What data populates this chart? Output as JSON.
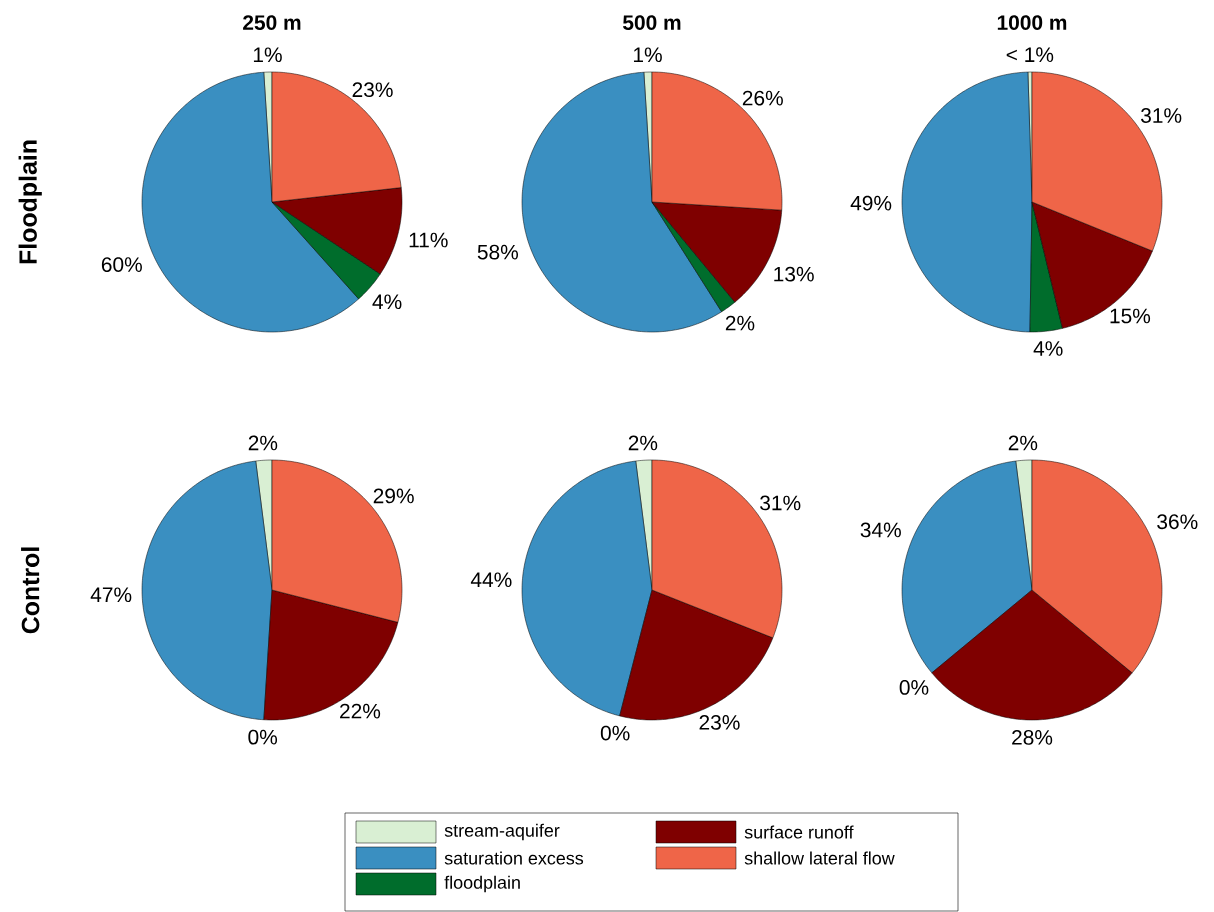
{
  "chart_data": [
    {
      "type": "pie",
      "title": "250 m",
      "ylabel": "Floodplain",
      "categories": [
        null,
        null,
        null,
        null,
        null
      ],
      "values": [
        1,
        60,
        4,
        11,
        23
      ],
      "colors": [
        "#d9efd3",
        "#3a8fc1",
        "#006d2c",
        "#7f0000",
        "#ef6548"
      ],
      "value_labels": [
        "1%",
        "60%",
        "4%",
        "11%",
        "23%"
      ]
    },
    {
      "type": "pie",
      "title": "500 m",
      "categories": [
        null,
        null,
        null,
        null,
        null
      ],
      "values": [
        1,
        58,
        2,
        13,
        26
      ],
      "colors": [
        "#d9efd3",
        "#3a8fc1",
        "#006d2c",
        "#7f0000",
        "#ef6548"
      ],
      "value_labels": [
        "1%",
        "58%",
        "2%",
        "13%",
        "26%"
      ]
    },
    {
      "type": "pie",
      "title": "1000 m",
      "categories": [
        null,
        null,
        null,
        null,
        null
      ],
      "values": [
        0.5,
        49,
        4,
        15,
        31
      ],
      "colors": [
        "#d9efd3",
        "#3a8fc1",
        "#006d2c",
        "#7f0000",
        "#ef6548"
      ],
      "value_labels": [
        "< 1%",
        "49%",
        "4%",
        "15%",
        "31%"
      ]
    },
    {
      "type": "pie",
      "ylabel": "Control",
      "categories": [
        null,
        null,
        null,
        null,
        null
      ],
      "values": [
        2,
        47,
        0,
        22,
        29
      ],
      "colors": [
        "#d9efd3",
        "#3a8fc1",
        "#006d2c",
        "#7f0000",
        "#ef6548"
      ],
      "value_labels": [
        "2%",
        "47%",
        "0%",
        "22%",
        "29%"
      ]
    },
    {
      "type": "pie",
      "legend": "bottom",
      "categories": [
        "stream-aquifer",
        "saturation excess",
        "floodplain",
        "surface runoff",
        "shallow lateral flow"
      ],
      "values": [
        2,
        44,
        0,
        23,
        31
      ],
      "colors": [
        "#d9efd3",
        "#3a8fc1",
        "#006d2c",
        "#7f0000",
        "#ef6548"
      ],
      "value_labels": [
        "2%",
        "44%",
        "0%",
        "23%",
        "31%"
      ]
    },
    {
      "type": "pie",
      "categories": [
        null,
        null,
        null,
        null,
        null
      ],
      "values": [
        2,
        34,
        0,
        28,
        36
      ],
      "colors": [
        "#d9efd3",
        "#3a8fc1",
        "#006d2c",
        "#7f0000",
        "#ef6548"
      ],
      "value_labels": [
        "2%",
        "34%",
        "0%",
        "28%",
        "36%"
      ]
    }
  ]
}
